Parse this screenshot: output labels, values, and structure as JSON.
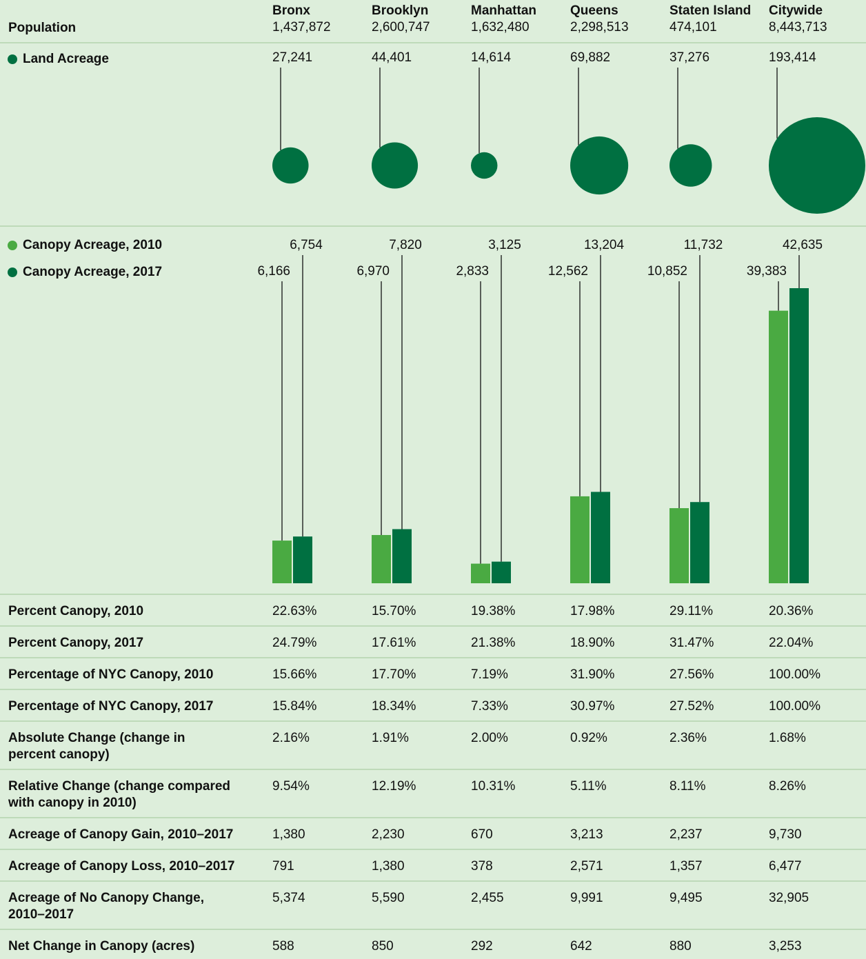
{
  "columns": [
    "Bronx",
    "Brooklyn",
    "Manhattan",
    "Queens",
    "Staten Island",
    "Citywide"
  ],
  "population": {
    "label": "Population",
    "values": [
      "1,437,872",
      "2,600,747",
      "1,632,480",
      "2,298,513",
      "474,101",
      "8,443,713"
    ]
  },
  "land_acreage": {
    "type": "bubble",
    "label": "Land Acreage",
    "color": "#007041",
    "values": [
      27241,
      44401,
      14614,
      69882,
      37276,
      193414
    ],
    "value_labels": [
      "27,241",
      "44,401",
      "14,614",
      "69,882",
      "37,276",
      "193,414"
    ]
  },
  "canopy": {
    "type": "bar",
    "series": [
      {
        "name": "Canopy Acreage, 2010",
        "color": "#4aaa42",
        "values": [
          6166,
          6970,
          2833,
          12562,
          10852,
          39383
        ],
        "value_labels": [
          "6,166",
          "6,970",
          "2,833",
          "12,562",
          "10,852",
          "39,383"
        ]
      },
      {
        "name": "Canopy Acreage, 2017",
        "color": "#007041",
        "values": [
          6754,
          7820,
          3125,
          13204,
          11732,
          42635
        ],
        "value_labels": [
          "6,754",
          "7,820",
          "3,125",
          "13,204",
          "11,732",
          "42,635"
        ]
      }
    ]
  },
  "table": {
    "rows": [
      {
        "label": [
          "Percent Canopy, 2010"
        ],
        "values": [
          "22.63%",
          "15.70%",
          "19.38%",
          "17.98%",
          "29.11%",
          "20.36%"
        ]
      },
      {
        "label": [
          "Percent Canopy, 2017"
        ],
        "values": [
          "24.79%",
          "17.61%",
          "21.38%",
          "18.90%",
          "31.47%",
          "22.04%"
        ]
      },
      {
        "label": [
          "Percentage of NYC Canopy, 2010"
        ],
        "values": [
          "15.66%",
          "17.70%",
          "7.19%",
          "31.90%",
          "27.56%",
          "100.00%"
        ]
      },
      {
        "label": [
          "Percentage of NYC Canopy, 2017"
        ],
        "values": [
          "15.84%",
          "18.34%",
          "7.33%",
          "30.97%",
          "27.52%",
          "100.00%"
        ]
      },
      {
        "label": [
          "Absolute Change (change in",
          "percent canopy)"
        ],
        "values": [
          "2.16%",
          "1.91%",
          "2.00%",
          "0.92%",
          "2.36%",
          "1.68%"
        ]
      },
      {
        "label": [
          "Relative Change (change compared",
          "with canopy in 2010)"
        ],
        "values": [
          "9.54%",
          "12.19%",
          "10.31%",
          "5.11%",
          "8.11%",
          "8.26%"
        ]
      },
      {
        "label": [
          "Acreage of Canopy Gain, 2010–2017"
        ],
        "values": [
          "1,380",
          "2,230",
          "670",
          "3,213",
          "2,237",
          "9,730"
        ]
      },
      {
        "label": [
          "Acreage of Canopy Loss, 2010–2017"
        ],
        "values": [
          "791",
          "1,380",
          "378",
          "2,571",
          "1,357",
          "6,477"
        ]
      },
      {
        "label": [
          "Acreage of No Canopy Change,",
          "2010–2017"
        ],
        "values": [
          "5,374",
          "5,590",
          "2,455",
          "9,991",
          "9,495",
          "32,905"
        ]
      },
      {
        "label": [
          "Net Change in Canopy (acres)"
        ],
        "values": [
          "588",
          "850",
          "292",
          "642",
          "880",
          "3,253"
        ]
      }
    ]
  }
}
